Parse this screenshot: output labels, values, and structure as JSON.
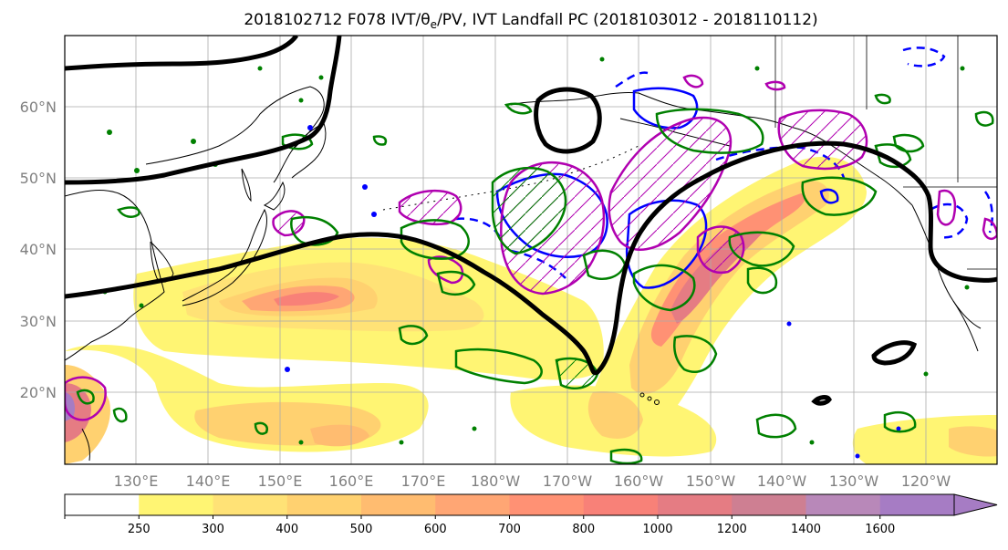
{
  "title": "2018102712 F078 IVT/θe/PV, IVT Landfall PC (2018103012 - 2018110112)",
  "map": {
    "lat_labels": [
      "60°N",
      "50°N",
      "40°N",
      "30°N",
      "20°N"
    ],
    "lon_labels": [
      "130°E",
      "140°E",
      "150°E",
      "160°E",
      "170°E",
      "180°W",
      "170°W",
      "160°W",
      "150°W",
      "140°W",
      "130°W",
      "120°W"
    ]
  },
  "colorbar": {
    "ticks": [
      "250",
      "300",
      "400",
      "500",
      "600",
      "700",
      "800",
      "1000",
      "1200",
      "1400",
      "1600"
    ],
    "colors": [
      "#ffffff",
      "#fff573",
      "#ffe276",
      "#ffd170",
      "#ffbc70",
      "#ffa674",
      "#ff9174",
      "#f88178",
      "#e57c83",
      "#ce7f92",
      "#b888b9",
      "#a67cc4"
    ],
    "extend": "max"
  },
  "colors": {
    "pc_positive": "#b000b0",
    "pc_negative": "#0000ff",
    "pv": "#008000",
    "theta_e": "#000000",
    "grid": "#aaaaaa",
    "coast": "#000000"
  }
}
